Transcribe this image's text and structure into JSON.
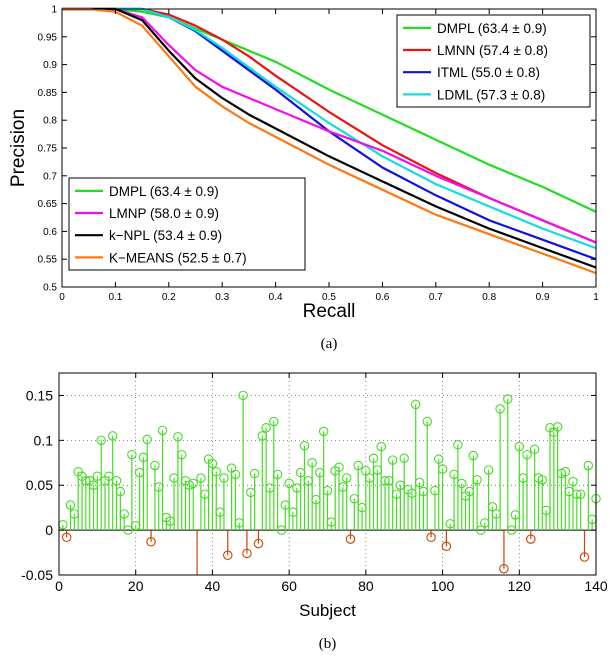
{
  "chart_data": [
    {
      "type": "line",
      "caption": "(a)",
      "xlabel": "Recall",
      "ylabel": "Precision",
      "xlim": [
        0,
        1
      ],
      "ylim": [
        0.5,
        1
      ],
      "x_ticks": [
        "0",
        "0.1",
        "0.2",
        "0.3",
        "0.4",
        "0.5",
        "0.6",
        "0.7",
        "0.8",
        "0.9",
        "1"
      ],
      "y_ticks": [
        "0.5",
        "0.55",
        "0.6",
        "0.65",
        "0.7",
        "0.75",
        "0.8",
        "0.85",
        "0.9",
        "0.95",
        "1"
      ],
      "grid": false,
      "legends": [
        {
          "position": "top-right",
          "entries": [
            {
              "series": "DMPL_a",
              "label": "DMPL (63.4 ± 0.9)"
            },
            {
              "series": "LMNN",
              "label": "LMNN (57.4 ± 0.8)"
            },
            {
              "series": "ITML",
              "label": "ITML (55.0 ± 0.8)"
            },
            {
              "series": "LDML",
              "label": "LDML (57.3 ± 0.8)"
            }
          ]
        },
        {
          "position": "bottom-left",
          "entries": [
            {
              "series": "DMPL_b",
              "label": "DMPL (63.4 ± 0.9)"
            },
            {
              "series": "LMNP",
              "label": "LMNP    (58.0 ± 0.9)"
            },
            {
              "series": "k-NPL",
              "label": "k−NPL   (53.4 ± 0.9)"
            },
            {
              "series": "K-MEANS",
              "label": "K−MEANS (52.5 ± 0.7)"
            }
          ]
        }
      ],
      "series": [
        {
          "id": "DMPL_a",
          "color": "#22dd22",
          "x": [
            0,
            0.05,
            0.1,
            0.15,
            0.2,
            0.25,
            0.3,
            0.35,
            0.4,
            0.5,
            0.6,
            0.7,
            0.8,
            0.9,
            1.0
          ],
          "y": [
            1,
            1,
            1,
            0.995,
            0.985,
            0.965,
            0.945,
            0.925,
            0.905,
            0.855,
            0.81,
            0.765,
            0.72,
            0.68,
            0.635
          ]
        },
        {
          "id": "LMNN",
          "color": "#ee1111",
          "x": [
            0,
            0.1,
            0.15,
            0.2,
            0.25,
            0.3,
            0.35,
            0.4,
            0.5,
            0.6,
            0.7,
            0.8,
            0.9,
            1.0
          ],
          "y": [
            1,
            1,
            1,
            0.99,
            0.97,
            0.945,
            0.915,
            0.88,
            0.815,
            0.755,
            0.705,
            0.66,
            0.62,
            0.58
          ]
        },
        {
          "id": "ITML",
          "color": "#1111dd",
          "x": [
            0,
            0.1,
            0.15,
            0.2,
            0.25,
            0.3,
            0.35,
            0.4,
            0.5,
            0.6,
            0.7,
            0.8,
            0.9,
            1.0
          ],
          "y": [
            1,
            1,
            1,
            0.985,
            0.96,
            0.925,
            0.89,
            0.855,
            0.78,
            0.715,
            0.665,
            0.62,
            0.585,
            0.55
          ]
        },
        {
          "id": "LDML",
          "color": "#11dddd",
          "x": [
            0,
            0.1,
            0.15,
            0.2,
            0.25,
            0.3,
            0.35,
            0.4,
            0.5,
            0.6,
            0.7,
            0.8,
            0.9,
            1.0
          ],
          "y": [
            1,
            1,
            1,
            0.985,
            0.962,
            0.93,
            0.895,
            0.86,
            0.795,
            0.735,
            0.685,
            0.645,
            0.605,
            0.57
          ]
        },
        {
          "id": "DMPL_b",
          "color": "#22dd22",
          "x": [],
          "y": []
        },
        {
          "id": "LMNP",
          "color": "#ee11ee",
          "x": [
            0,
            0.05,
            0.1,
            0.15,
            0.2,
            0.25,
            0.3,
            0.35,
            0.4,
            0.5,
            0.6,
            0.7,
            0.8,
            0.9,
            1.0
          ],
          "y": [
            1,
            1,
            1,
            0.985,
            0.935,
            0.89,
            0.86,
            0.84,
            0.82,
            0.78,
            0.745,
            0.7,
            0.66,
            0.62,
            0.58
          ]
        },
        {
          "id": "k-NPL",
          "color": "#000000",
          "x": [
            0,
            0.05,
            0.1,
            0.15,
            0.2,
            0.25,
            0.3,
            0.35,
            0.4,
            0.5,
            0.6,
            0.7,
            0.8,
            0.9,
            1.0
          ],
          "y": [
            1,
            1,
            1,
            0.98,
            0.925,
            0.875,
            0.84,
            0.81,
            0.785,
            0.735,
            0.69,
            0.645,
            0.605,
            0.57,
            0.535
          ]
        },
        {
          "id": "K-MEANS",
          "color": "#ff7711",
          "x": [
            0,
            0.05,
            0.1,
            0.15,
            0.2,
            0.25,
            0.3,
            0.35,
            0.4,
            0.5,
            0.6,
            0.7,
            0.8,
            0.9,
            1.0
          ],
          "y": [
            1,
            1,
            0.995,
            0.97,
            0.915,
            0.86,
            0.825,
            0.795,
            0.77,
            0.72,
            0.675,
            0.63,
            0.595,
            0.56,
            0.525
          ]
        }
      ]
    },
    {
      "type": "stem",
      "caption": "(b)",
      "xlabel": "Subject",
      "ylabel": "",
      "xlim": [
        0,
        140
      ],
      "ylim": [
        -0.05,
        0.175
      ],
      "x_ticks": [
        "0",
        "20",
        "40",
        "60",
        "80",
        "100",
        "120",
        "140"
      ],
      "y_ticks": [
        "-0.05",
        "0",
        "0.05",
        "0.1",
        "0.15"
      ],
      "grid": "dotted",
      "positive_color": "#44dd22",
      "negative_color": "#cc4400",
      "x": [
        1,
        2,
        3,
        4,
        5,
        6,
        7,
        8,
        9,
        10,
        11,
        12,
        13,
        14,
        15,
        16,
        17,
        18,
        19,
        20,
        21,
        22,
        23,
        24,
        25,
        26,
        27,
        28,
        29,
        30,
        31,
        32,
        33,
        34,
        35,
        36,
        37,
        38,
        39,
        40,
        41,
        42,
        43,
        44,
        45,
        46,
        47,
        48,
        49,
        50,
        51,
        52,
        53,
        54,
        55,
        56,
        57,
        58,
        59,
        60,
        61,
        62,
        63,
        64,
        65,
        66,
        67,
        68,
        69,
        70,
        71,
        72,
        73,
        74,
        75,
        76,
        77,
        78,
        79,
        80,
        81,
        82,
        83,
        84,
        85,
        86,
        87,
        88,
        89,
        90,
        91,
        92,
        93,
        94,
        95,
        96,
        97,
        98,
        99,
        100,
        101,
        102,
        103,
        104,
        105,
        106,
        107,
        108,
        109,
        110,
        111,
        112,
        113,
        114,
        115,
        116,
        117,
        118,
        119,
        120,
        121,
        122,
        123,
        124,
        125,
        126,
        127,
        128,
        129,
        130,
        131,
        132,
        133,
        134,
        135,
        136,
        137,
        138,
        139,
        140
      ],
      "values": [
        0.006,
        -0.008,
        0.028,
        0.018,
        0.065,
        0.06,
        0.055,
        0.055,
        0.05,
        0.06,
        0.1,
        0.055,
        0.06,
        0.105,
        0.055,
        0.043,
        0.018,
        0.0,
        0.084,
        0.005,
        0.064,
        0.081,
        0.101,
        -0.013,
        0.072,
        0.048,
        0.111,
        0.014,
        0.01,
        0.058,
        0.104,
        0.084,
        0.055,
        0.05,
        0.052,
        -0.07,
        0.058,
        0.04,
        0.079,
        0.074,
        0.065,
        0.02,
        0.058,
        -0.028,
        0.069,
        0.062,
        0.008,
        0.15,
        -0.026,
        0.042,
        0.063,
        -0.015,
        0.105,
        0.114,
        0.047,
        0.121,
        0.062,
        0.0,
        0.028,
        0.052,
        0.02,
        0.047,
        0.064,
        0.094,
        0.055,
        0.075,
        0.034,
        0.064,
        0.11,
        0.044,
        0.009,
        0.066,
        0.07,
        0.048,
        0.058,
        -0.01,
        0.035,
        0.072,
        0.025,
        0.066,
        0.058,
        0.08,
        0.067,
        0.093,
        0.055,
        0.055,
        0.078,
        0.04,
        0.05,
        0.08,
        0.045,
        0.041,
        0.14,
        0.053,
        0.043,
        0.121,
        -0.008,
        0.044,
        0.079,
        0.068,
        -0.018,
        0.007,
        0.062,
        0.095,
        0.052,
        0.038,
        0.043,
        0.083,
        0.056,
        0.0,
        0.008,
        0.067,
        0.026,
        0.018,
        0.135,
        -0.043,
        0.146,
        0.0,
        0.017,
        0.093,
        0.058,
        0.084,
        -0.01,
        0.09,
        0.058,
        0.056,
        0.022,
        0.114,
        0.109,
        0.115,
        0.063,
        0.065,
        0.043,
        0.054,
        0.04,
        0.04,
        -0.03,
        0.072,
        0.012,
        0.035
      ]
    }
  ]
}
